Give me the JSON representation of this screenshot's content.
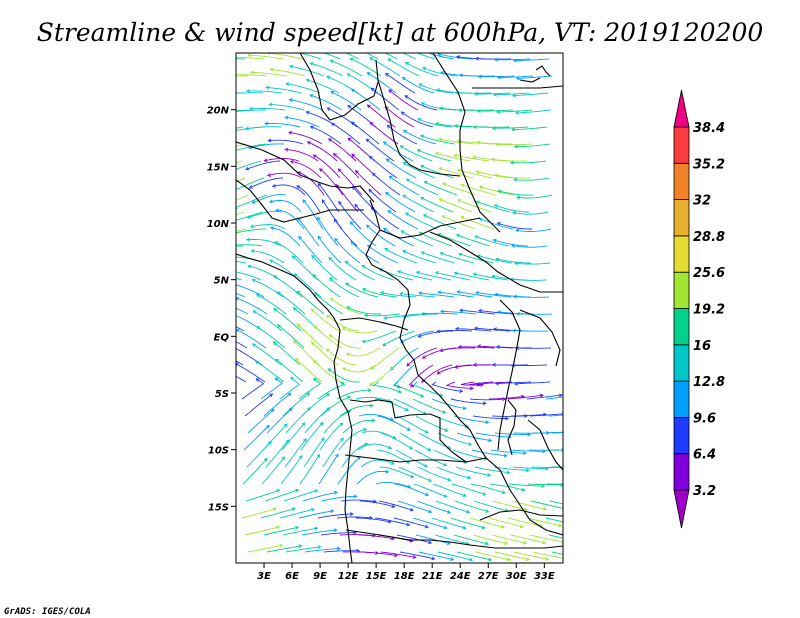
{
  "title": "Streamline & wind speed[kt] at 600hPa, VT: 2019120200",
  "credit": "GrADS: IGES/COLA",
  "map": {
    "lon_range": [
      0,
      35
    ],
    "lat_range": [
      -20,
      25
    ],
    "x_ticks": [
      {
        "value": 3,
        "label": "3E"
      },
      {
        "value": 6,
        "label": "6E"
      },
      {
        "value": 9,
        "label": "9E"
      },
      {
        "value": 12,
        "label": "12E"
      },
      {
        "value": 15,
        "label": "15E"
      },
      {
        "value": 18,
        "label": "18E"
      },
      {
        "value": 21,
        "label": "21E"
      },
      {
        "value": 24,
        "label": "24E"
      },
      {
        "value": 27,
        "label": "27E"
      },
      {
        "value": 30,
        "label": "30E"
      },
      {
        "value": 33,
        "label": "33E"
      }
    ],
    "y_ticks": [
      {
        "value": 20,
        "label": "20N"
      },
      {
        "value": 15,
        "label": "15N"
      },
      {
        "value": 10,
        "label": "10N"
      },
      {
        "value": 5,
        "label": "5N"
      },
      {
        "value": 0,
        "label": "EQ"
      },
      {
        "value": -5,
        "label": "5S"
      },
      {
        "value": -10,
        "label": "10S"
      },
      {
        "value": -15,
        "label": "15S"
      }
    ]
  },
  "colorbar": {
    "levels": [
      "3.2",
      "6.4",
      "9.6",
      "12.8",
      "16",
      "19.2",
      "25.6",
      "28.8",
      "32",
      "35.2",
      "38.4"
    ],
    "colors": [
      "#a000c8",
      "#8200dc",
      "#1e3cff",
      "#00a0ff",
      "#00c8c8",
      "#00d28c",
      "#a0e632",
      "#e6dc32",
      "#e6af2d",
      "#f08228",
      "#fa3c3c",
      "#f00082"
    ]
  }
}
